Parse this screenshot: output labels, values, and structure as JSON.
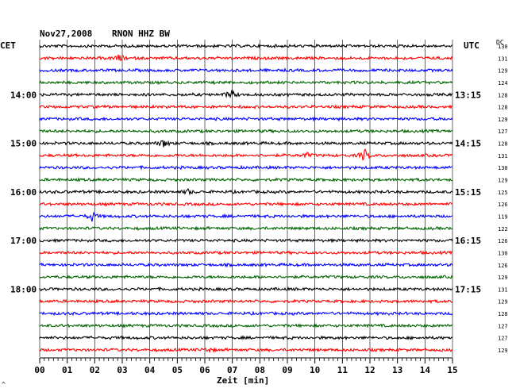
{
  "header": {
    "date": "Nov27,2008",
    "station": "RNON HHZ BW"
  },
  "labels": {
    "left_tz": "CET",
    "right_tz": "UTC",
    "dc_header": "DC",
    "xlabel": "Zeit [min]",
    "corner_mark": "^"
  },
  "colors": {
    "black": "#000000",
    "red": "#ff0000",
    "blue": "#0000ff",
    "green": "#006400",
    "grid": "#000000"
  },
  "chart_data": {
    "type": "line",
    "title": "Nov27,2008   RNON HHZ BW",
    "xlabel": "Zeit [min]",
    "xlim": [
      0,
      15
    ],
    "x_ticks": [
      "00",
      "01",
      "02",
      "03",
      "04",
      "05",
      "06",
      "07",
      "08",
      "09",
      "10",
      "11",
      "12",
      "13",
      "14",
      "15"
    ],
    "trace_minutes": 15,
    "trace_color_cycle": [
      "black",
      "red",
      "blue",
      "green"
    ],
    "dc_values": [
      130,
      131,
      129,
      124,
      128,
      128,
      129,
      127,
      128,
      131,
      130,
      129,
      125,
      126,
      119,
      122,
      126,
      130,
      126,
      129,
      131,
      129,
      128,
      127,
      127,
      129
    ],
    "hour_labels": [
      {
        "trace": 4,
        "cet": "14:00",
        "utc": "13:15"
      },
      {
        "trace": 8,
        "cet": "15:00",
        "utc": "14:15"
      },
      {
        "trace": 12,
        "cet": "16:00",
        "utc": "15:15"
      },
      {
        "trace": 16,
        "cet": "17:00",
        "utc": "16:15"
      },
      {
        "trace": 20,
        "cet": "18:00",
        "utc": "17:15"
      }
    ],
    "events": [
      {
        "trace": 1,
        "minute": 2.9,
        "amplitude": 5
      },
      {
        "trace": 4,
        "minute": 6.95,
        "amplitude": 6
      },
      {
        "trace": 8,
        "minute": 4.5,
        "amplitude": 5
      },
      {
        "trace": 9,
        "minute": 11.8,
        "amplitude": 8
      },
      {
        "trace": 9,
        "minute": 9.7,
        "amplitude": 3
      },
      {
        "trace": 12,
        "minute": 5.4,
        "amplitude": 3
      },
      {
        "trace": 14,
        "minute": 1.9,
        "amplitude": 6
      },
      {
        "trace": 25,
        "minute": 6.1,
        "amplitude": 3
      }
    ]
  }
}
